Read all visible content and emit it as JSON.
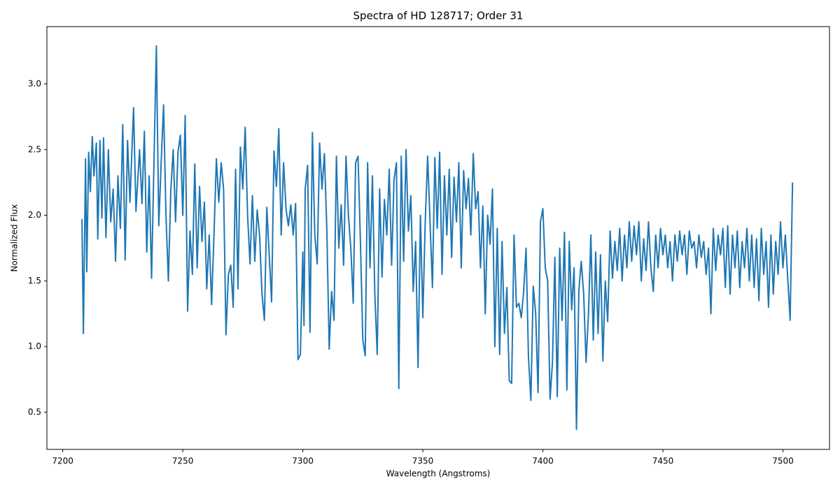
{
  "chart_data": {
    "type": "line",
    "title": "Spectra of HD 128717; Order 31",
    "xlabel": "Wavelength (Angstroms)",
    "ylabel": "Normalized Flux",
    "color": "#1f77b4",
    "xlim": [
      7193.4,
      7519.4
    ],
    "ylim": [
      0.217,
      3.437
    ],
    "xticks": [
      7200,
      7250,
      7300,
      7350,
      7400,
      7450,
      7500
    ],
    "yticks": [
      0.5,
      {
        "value": 1,
        "label": "1.0"
      },
      1.5,
      {
        "value": 2,
        "label": "2.0"
      },
      2.5,
      {
        "value": 3,
        "label": "3.0"
      }
    ],
    "x": [
      7208,
      7208.6,
      7209.5,
      7210,
      7210.8,
      7211.5,
      7212.3,
      7213,
      7214,
      7214.6,
      7215.5,
      7216.3,
      7217,
      7218,
      7219,
      7220,
      7221,
      7222,
      7223,
      7224,
      7225,
      7226,
      7227,
      7228,
      7229.5,
      7230.5,
      7232,
      7233,
      7234,
      7235,
      7236,
      7237,
      7238,
      7239,
      7240,
      7241,
      7242,
      7243,
      7244,
      7245,
      7246,
      7247,
      7248,
      7249,
      7250,
      7251,
      7252,
      7253,
      7254,
      7255,
      7256,
      7257,
      7258,
      7259,
      7260,
      7261,
      7262,
      7263,
      7264,
      7265,
      7266,
      7267,
      7268,
      7269,
      7270,
      7271,
      7272,
      7273,
      7274,
      7275,
      7276,
      7277,
      7278,
      7279,
      7280,
      7281,
      7282,
      7283,
      7284,
      7285,
      7286,
      7287,
      7288,
      7289,
      7290,
      7291,
      7292,
      7293,
      7294,
      7295,
      7296,
      7297,
      7298,
      7299,
      7300,
      7300.5,
      7301,
      7302,
      7303,
      7304,
      7305,
      7306,
      7307,
      7308,
      7309,
      7310,
      7311,
      7312,
      7313,
      7314,
      7315,
      7316,
      7317,
      7318,
      7319,
      7320,
      7321,
      7322,
      7323,
      7324,
      7325,
      7326,
      7327,
      7328,
      7329,
      7330,
      7331,
      7332,
      7333,
      7334,
      7335,
      7336,
      7337,
      7338,
      7339,
      7340,
      7341,
      7342,
      7343,
      7344,
      7345,
      7346,
      7347,
      7348,
      7349,
      7350,
      7351,
      7352,
      7353,
      7354,
      7355,
      7356,
      7357,
      7358,
      7359,
      7360,
      7361,
      7362,
      7363,
      7364,
      7365,
      7366,
      7367,
      7368,
      7369,
      7370,
      7371,
      7372,
      7373,
      7374,
      7375,
      7376,
      7377,
      7378,
      7379,
      7380,
      7381,
      7382,
      7383,
      7384,
      7385,
      7386,
      7387,
      7388,
      7389,
      7390,
      7391,
      7392,
      7393,
      7394,
      7395,
      7396,
      7397,
      7398,
      7399,
      7400,
      7401,
      7402,
      7403,
      7404,
      7405,
      7406,
      7407,
      7408,
      7409,
      7410,
      7411,
      7412,
      7413,
      7414,
      7415,
      7416,
      7417,
      7418,
      7419,
      7420,
      7421,
      7422,
      7423,
      7424,
      7425,
      7426,
      7427,
      7428,
      7429,
      7430,
      7431,
      7432,
      7433,
      7434,
      7435,
      7436,
      7437,
      7438,
      7439,
      7440,
      7441,
      7442,
      7443,
      7444,
      7445,
      7446,
      7447,
      7448,
      7449,
      7450,
      7451,
      7452,
      7453,
      7454,
      7455,
      7456,
      7457,
      7458,
      7459,
      7460,
      7461,
      7462,
      7463,
      7464,
      7465,
      7466,
      7467,
      7468,
      7469,
      7470,
      7471,
      7472,
      7473,
      7474,
      7475,
      7476,
      7477,
      7478,
      7479,
      7480,
      7481,
      7482,
      7483,
      7484,
      7485,
      7486,
      7487,
      7488,
      7489,
      7490,
      7491,
      7492,
      7493,
      7494,
      7495,
      7496,
      7497,
      7498,
      7499,
      7500,
      7501,
      7502,
      7503,
      7504
    ],
    "y": [
      1.97,
      1.1,
      2.43,
      1.57,
      2.48,
      2.18,
      2.6,
      2.3,
      2.55,
      1.82,
      2.57,
      1.98,
      2.59,
      1.83,
      2.5,
      1.95,
      2.2,
      1.65,
      2.3,
      1.9,
      2.69,
      1.66,
      2.57,
      2.1,
      2.82,
      2.03,
      2.5,
      2.09,
      2.64,
      1.72,
      2.3,
      1.52,
      2.4,
      3.29,
      1.92,
      2.4,
      2.84,
      2.0,
      1.5,
      2.18,
      2.5,
      1.95,
      2.48,
      2.61,
      2.0,
      2.76,
      1.27,
      1.88,
      1.55,
      2.39,
      1.6,
      2.22,
      1.8,
      2.1,
      1.44,
      1.85,
      1.32,
      1.85,
      2.43,
      2.1,
      2.4,
      2.2,
      1.09,
      1.55,
      1.62,
      1.3,
      2.35,
      1.44,
      2.52,
      2.2,
      2.67,
      2.0,
      1.63,
      2.15,
      1.65,
      2.04,
      1.85,
      1.4,
      1.2,
      2.06,
      1.7,
      1.34,
      2.49,
      2.22,
      2.66,
      1.85,
      2.4,
      2.05,
      1.92,
      2.08,
      1.85,
      2.09,
      0.9,
      0.94,
      1.72,
      1.16,
      2.2,
      2.38,
      1.11,
      2.63,
      1.85,
      1.63,
      2.55,
      2.2,
      2.47,
      1.9,
      0.98,
      1.42,
      1.2,
      2.45,
      1.75,
      2.08,
      1.62,
      2.45,
      2.0,
      1.75,
      1.33,
      2.4,
      2.45,
      1.8,
      1.05,
      0.93,
      2.4,
      1.6,
      2.3,
      1.4,
      0.94,
      2.2,
      1.53,
      2.12,
      1.85,
      2.35,
      1.62,
      2.27,
      2.4,
      0.68,
      2.45,
      1.65,
      2.5,
      1.88,
      2.15,
      1.42,
      1.8,
      0.84,
      2.0,
      1.22,
      1.95,
      2.45,
      1.95,
      1.45,
      2.44,
      1.9,
      2.48,
      1.55,
      2.3,
      1.85,
      2.35,
      1.68,
      2.29,
      1.95,
      2.4,
      1.6,
      2.34,
      2.05,
      2.28,
      1.85,
      2.47,
      2.05,
      2.18,
      1.6,
      2.07,
      1.25,
      2.0,
      1.78,
      2.2,
      1.0,
      1.9,
      0.94,
      1.8,
      1.1,
      1.45,
      0.74,
      0.72,
      1.85,
      1.3,
      1.33,
      1.22,
      1.42,
      1.75,
      0.92,
      0.59,
      1.46,
      1.25,
      0.65,
      1.95,
      2.05,
      1.6,
      1.5,
      0.6,
      0.88,
      1.68,
      0.62,
      1.75,
      1.2,
      1.87,
      0.67,
      1.8,
      1.28,
      1.6,
      0.37,
      1.43,
      1.65,
      1.4,
      0.88,
      1.25,
      1.85,
      1.05,
      1.72,
      1.1,
      1.7,
      0.89,
      1.5,
      1.19,
      1.88,
      1.52,
      1.8,
      1.58,
      1.9,
      1.5,
      1.85,
      1.6,
      1.95,
      1.65,
      1.92,
      1.7,
      1.95,
      1.5,
      1.82,
      1.58,
      1.95,
      1.6,
      1.42,
      1.85,
      1.6,
      1.9,
      1.7,
      1.85,
      1.6,
      1.8,
      1.5,
      1.85,
      1.65,
      1.88,
      1.7,
      1.85,
      1.55,
      1.88,
      1.75,
      1.8,
      1.6,
      1.85,
      1.68,
      1.8,
      1.55,
      1.75,
      1.25,
      1.9,
      1.58,
      1.85,
      1.7,
      1.9,
      1.45,
      1.92,
      1.4,
      1.85,
      1.6,
      1.88,
      1.45,
      1.8,
      1.6,
      1.9,
      1.5,
      1.85,
      1.45,
      1.82,
      1.35,
      1.9,
      1.55,
      1.8,
      1.3,
      1.85,
      1.4,
      1.8,
      1.55,
      1.95,
      1.6,
      1.85,
      1.52,
      1.2,
      2.25
    ]
  }
}
